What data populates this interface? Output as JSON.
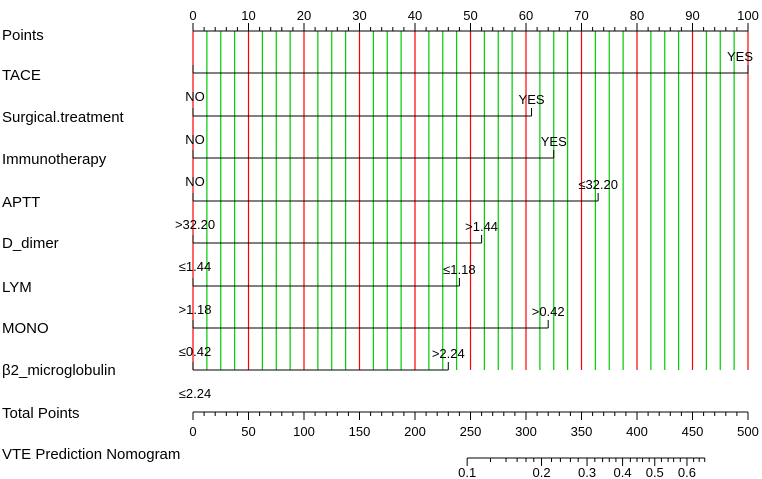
{
  "chart_data": {
    "type": "nomogram",
    "title": "",
    "points_axis": {
      "label": "Points",
      "range": [
        0,
        100
      ],
      "ticks": [
        "0",
        "10",
        "20",
        "30",
        "40",
        "50",
        "60",
        "70",
        "80",
        "90",
        "100"
      ],
      "major_line_color": "#ff0000",
      "minor_line_color": "#00cc00"
    },
    "predictors": [
      {
        "name": "TACE",
        "levels": [
          {
            "label": "NO",
            "points": 0
          },
          {
            "label": "YES",
            "points": 100
          }
        ]
      },
      {
        "name": "Surgical.treatment",
        "levels": [
          {
            "label": "NO",
            "points": 0
          },
          {
            "label": "YES",
            "points": 61
          }
        ]
      },
      {
        "name": "Immunotherapy",
        "levels": [
          {
            "label": "NO",
            "points": 0
          },
          {
            "label": "YES",
            "points": 65
          }
        ]
      },
      {
        "name": "APTT",
        "levels": [
          {
            "label": ">32.20",
            "points": 0
          },
          {
            "label": "≤32.20",
            "points": 73
          }
        ]
      },
      {
        "name": "D_dimer",
        "levels": [
          {
            "label": "≤1.44",
            "points": 0
          },
          {
            "label": ">1.44",
            "points": 52
          }
        ]
      },
      {
        "name": "LYM",
        "levels": [
          {
            "label": ">1.18",
            "points": 0
          },
          {
            "label": "≤1.18",
            "points": 48
          }
        ]
      },
      {
        "name": "MONO",
        "levels": [
          {
            "label": "≤0.42",
            "points": 0
          },
          {
            "label": ">0.42",
            "points": 64
          }
        ]
      },
      {
        "name": "β2_microglobulin",
        "levels": [
          {
            "label": "≤2.24",
            "points": 0
          },
          {
            "label": ">2.24",
            "points": 46
          }
        ]
      }
    ],
    "total_points_axis": {
      "label": "Total Points",
      "range": [
        0,
        500
      ],
      "ticks": [
        "0",
        "50",
        "100",
        "150",
        "200",
        "250",
        "300",
        "350",
        "400",
        "450",
        "500"
      ]
    },
    "probability_axis": {
      "label": "VTE Prediction Nomogram",
      "ticks": [
        {
          "label": "0.1",
          "total_points": 247
        },
        {
          "label": "0.2",
          "total_points": 314
        },
        {
          "label": "0.3",
          "total_points": 355
        },
        {
          "label": "0.4",
          "total_points": 387
        },
        {
          "label": "0.5",
          "total_points": 416
        },
        {
          "label": "0.6",
          "total_points": 445
        }
      ],
      "range_total_points": [
        247,
        461
      ]
    }
  }
}
